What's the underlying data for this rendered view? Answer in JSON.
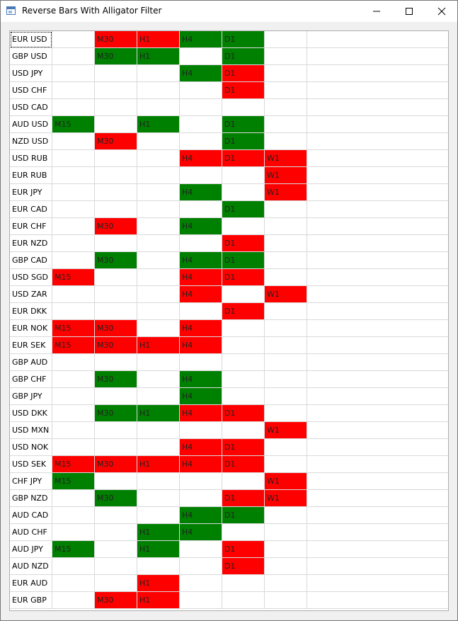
{
  "window": {
    "title": "Reverse Bars With Alligator Filter",
    "icon": "app-window-icon",
    "controls": [
      "minimize-icon",
      "maximize-icon",
      "close-icon"
    ]
  },
  "colors": {
    "bullish": "#008000",
    "bearish": "#ff0000"
  },
  "rows": [
    {
      "pair": "EUR USD",
      "cells": [
        {
          "t": "",
          "c": ""
        },
        {
          "t": "M30",
          "c": "red"
        },
        {
          "t": "H1",
          "c": "red"
        },
        {
          "t": "H4",
          "c": "green"
        },
        {
          "t": "D1",
          "c": "green"
        },
        {
          "t": "",
          "c": ""
        }
      ]
    },
    {
      "pair": "GBP USD",
      "cells": [
        {
          "t": "",
          "c": ""
        },
        {
          "t": "M30",
          "c": "green"
        },
        {
          "t": "H1",
          "c": "green"
        },
        {
          "t": "",
          "c": ""
        },
        {
          "t": "D1",
          "c": "green"
        },
        {
          "t": "",
          "c": ""
        }
      ]
    },
    {
      "pair": "USD JPY",
      "cells": [
        {
          "t": "",
          "c": ""
        },
        {
          "t": "",
          "c": ""
        },
        {
          "t": "",
          "c": ""
        },
        {
          "t": "H4",
          "c": "green"
        },
        {
          "t": "D1",
          "c": "red"
        },
        {
          "t": "",
          "c": ""
        }
      ]
    },
    {
      "pair": "USD CHF",
      "cells": [
        {
          "t": "",
          "c": ""
        },
        {
          "t": "",
          "c": ""
        },
        {
          "t": "",
          "c": ""
        },
        {
          "t": "",
          "c": ""
        },
        {
          "t": "D1",
          "c": "red"
        },
        {
          "t": "",
          "c": ""
        }
      ]
    },
    {
      "pair": "USD CAD",
      "cells": [
        {
          "t": "",
          "c": ""
        },
        {
          "t": "",
          "c": ""
        },
        {
          "t": "",
          "c": ""
        },
        {
          "t": "",
          "c": ""
        },
        {
          "t": "",
          "c": ""
        },
        {
          "t": "",
          "c": ""
        }
      ]
    },
    {
      "pair": "AUD USD",
      "cells": [
        {
          "t": "M15",
          "c": "green"
        },
        {
          "t": "",
          "c": ""
        },
        {
          "t": "H1",
          "c": "green"
        },
        {
          "t": "",
          "c": ""
        },
        {
          "t": "D1",
          "c": "green"
        },
        {
          "t": "",
          "c": ""
        }
      ]
    },
    {
      "pair": "NZD USD",
      "cells": [
        {
          "t": "",
          "c": ""
        },
        {
          "t": "M30",
          "c": "red"
        },
        {
          "t": "",
          "c": ""
        },
        {
          "t": "",
          "c": ""
        },
        {
          "t": "D1",
          "c": "green"
        },
        {
          "t": "",
          "c": ""
        }
      ]
    },
    {
      "pair": "USD RUB",
      "cells": [
        {
          "t": "",
          "c": ""
        },
        {
          "t": "",
          "c": ""
        },
        {
          "t": "",
          "c": ""
        },
        {
          "t": "H4",
          "c": "red"
        },
        {
          "t": "D1",
          "c": "red"
        },
        {
          "t": "W1",
          "c": "red"
        }
      ]
    },
    {
      "pair": "EUR RUB",
      "cells": [
        {
          "t": "",
          "c": ""
        },
        {
          "t": "",
          "c": ""
        },
        {
          "t": "",
          "c": ""
        },
        {
          "t": "",
          "c": ""
        },
        {
          "t": "",
          "c": ""
        },
        {
          "t": "W1",
          "c": "red"
        }
      ]
    },
    {
      "pair": "EUR JPY",
      "cells": [
        {
          "t": "",
          "c": ""
        },
        {
          "t": "",
          "c": ""
        },
        {
          "t": "",
          "c": ""
        },
        {
          "t": "H4",
          "c": "green"
        },
        {
          "t": "",
          "c": ""
        },
        {
          "t": "W1",
          "c": "red"
        }
      ]
    },
    {
      "pair": "EUR CAD",
      "cells": [
        {
          "t": "",
          "c": ""
        },
        {
          "t": "",
          "c": ""
        },
        {
          "t": "",
          "c": ""
        },
        {
          "t": "",
          "c": ""
        },
        {
          "t": "D1",
          "c": "green"
        },
        {
          "t": "",
          "c": ""
        }
      ]
    },
    {
      "pair": "EUR CHF",
      "cells": [
        {
          "t": "",
          "c": ""
        },
        {
          "t": "M30",
          "c": "red"
        },
        {
          "t": "",
          "c": ""
        },
        {
          "t": "H4",
          "c": "green"
        },
        {
          "t": "",
          "c": ""
        },
        {
          "t": "",
          "c": ""
        }
      ]
    },
    {
      "pair": "EUR NZD",
      "cells": [
        {
          "t": "",
          "c": ""
        },
        {
          "t": "",
          "c": ""
        },
        {
          "t": "",
          "c": ""
        },
        {
          "t": "",
          "c": ""
        },
        {
          "t": "D1",
          "c": "red"
        },
        {
          "t": "",
          "c": ""
        }
      ]
    },
    {
      "pair": "GBP CAD",
      "cells": [
        {
          "t": "",
          "c": ""
        },
        {
          "t": "M30",
          "c": "green"
        },
        {
          "t": "",
          "c": ""
        },
        {
          "t": "H4",
          "c": "green"
        },
        {
          "t": "D1",
          "c": "green"
        },
        {
          "t": "",
          "c": ""
        }
      ]
    },
    {
      "pair": "USD SGD",
      "cells": [
        {
          "t": "M15",
          "c": "red"
        },
        {
          "t": "",
          "c": ""
        },
        {
          "t": "",
          "c": ""
        },
        {
          "t": "H4",
          "c": "red"
        },
        {
          "t": "D1",
          "c": "red"
        },
        {
          "t": "",
          "c": ""
        }
      ]
    },
    {
      "pair": "USD ZAR",
      "cells": [
        {
          "t": "",
          "c": ""
        },
        {
          "t": "",
          "c": ""
        },
        {
          "t": "",
          "c": ""
        },
        {
          "t": "H4",
          "c": "red"
        },
        {
          "t": "",
          "c": ""
        },
        {
          "t": "W1",
          "c": "red"
        }
      ]
    },
    {
      "pair": "EUR DKK",
      "cells": [
        {
          "t": "",
          "c": ""
        },
        {
          "t": "",
          "c": ""
        },
        {
          "t": "",
          "c": ""
        },
        {
          "t": "",
          "c": ""
        },
        {
          "t": "D1",
          "c": "red"
        },
        {
          "t": "",
          "c": ""
        }
      ]
    },
    {
      "pair": "EUR NOK",
      "cells": [
        {
          "t": "M15",
          "c": "red"
        },
        {
          "t": "M30",
          "c": "red"
        },
        {
          "t": "",
          "c": ""
        },
        {
          "t": "H4",
          "c": "red"
        },
        {
          "t": "",
          "c": ""
        },
        {
          "t": "",
          "c": ""
        }
      ]
    },
    {
      "pair": "EUR SEK",
      "cells": [
        {
          "t": "M15",
          "c": "red"
        },
        {
          "t": "M30",
          "c": "red"
        },
        {
          "t": "H1",
          "c": "red"
        },
        {
          "t": "H4",
          "c": "red"
        },
        {
          "t": "",
          "c": ""
        },
        {
          "t": "",
          "c": ""
        }
      ]
    },
    {
      "pair": "GBP AUD",
      "cells": [
        {
          "t": "",
          "c": ""
        },
        {
          "t": "",
          "c": ""
        },
        {
          "t": "",
          "c": ""
        },
        {
          "t": "",
          "c": ""
        },
        {
          "t": "",
          "c": ""
        },
        {
          "t": "",
          "c": ""
        }
      ]
    },
    {
      "pair": "GBP CHF",
      "cells": [
        {
          "t": "",
          "c": ""
        },
        {
          "t": "M30",
          "c": "green"
        },
        {
          "t": "",
          "c": ""
        },
        {
          "t": "H4",
          "c": "green"
        },
        {
          "t": "",
          "c": ""
        },
        {
          "t": "",
          "c": ""
        }
      ]
    },
    {
      "pair": "GBP JPY",
      "cells": [
        {
          "t": "",
          "c": ""
        },
        {
          "t": "",
          "c": ""
        },
        {
          "t": "",
          "c": ""
        },
        {
          "t": "H4",
          "c": "green"
        },
        {
          "t": "",
          "c": ""
        },
        {
          "t": "",
          "c": ""
        }
      ]
    },
    {
      "pair": "USD DKK",
      "cells": [
        {
          "t": "",
          "c": ""
        },
        {
          "t": "M30",
          "c": "green"
        },
        {
          "t": "H1",
          "c": "green"
        },
        {
          "t": "H4",
          "c": "red"
        },
        {
          "t": "D1",
          "c": "red"
        },
        {
          "t": "",
          "c": ""
        }
      ]
    },
    {
      "pair": "USD MXN",
      "cells": [
        {
          "t": "",
          "c": ""
        },
        {
          "t": "",
          "c": ""
        },
        {
          "t": "",
          "c": ""
        },
        {
          "t": "",
          "c": ""
        },
        {
          "t": "",
          "c": ""
        },
        {
          "t": "W1",
          "c": "red"
        }
      ]
    },
    {
      "pair": "USD NOK",
      "cells": [
        {
          "t": "",
          "c": ""
        },
        {
          "t": "",
          "c": ""
        },
        {
          "t": "",
          "c": ""
        },
        {
          "t": "H4",
          "c": "red"
        },
        {
          "t": "D1",
          "c": "red"
        },
        {
          "t": "",
          "c": ""
        }
      ]
    },
    {
      "pair": "USD SEK",
      "cells": [
        {
          "t": "M15",
          "c": "red"
        },
        {
          "t": "M30",
          "c": "red"
        },
        {
          "t": "H1",
          "c": "red"
        },
        {
          "t": "H4",
          "c": "red"
        },
        {
          "t": "D1",
          "c": "red"
        },
        {
          "t": "",
          "c": ""
        }
      ]
    },
    {
      "pair": "CHF JPY",
      "cells": [
        {
          "t": "M15",
          "c": "green"
        },
        {
          "t": "",
          "c": ""
        },
        {
          "t": "",
          "c": ""
        },
        {
          "t": "",
          "c": ""
        },
        {
          "t": "",
          "c": ""
        },
        {
          "t": "W1",
          "c": "red"
        }
      ]
    },
    {
      "pair": "GBP NZD",
      "cells": [
        {
          "t": "",
          "c": ""
        },
        {
          "t": "M30",
          "c": "green"
        },
        {
          "t": "",
          "c": ""
        },
        {
          "t": "",
          "c": ""
        },
        {
          "t": "D1",
          "c": "red"
        },
        {
          "t": "W1",
          "c": "red"
        }
      ]
    },
    {
      "pair": "AUD CAD",
      "cells": [
        {
          "t": "",
          "c": ""
        },
        {
          "t": "",
          "c": ""
        },
        {
          "t": "",
          "c": ""
        },
        {
          "t": "H4",
          "c": "green"
        },
        {
          "t": "D1",
          "c": "green"
        },
        {
          "t": "",
          "c": ""
        }
      ]
    },
    {
      "pair": "AUD CHF",
      "cells": [
        {
          "t": "",
          "c": ""
        },
        {
          "t": "",
          "c": ""
        },
        {
          "t": "H1",
          "c": "green"
        },
        {
          "t": "H4",
          "c": "green"
        },
        {
          "t": "",
          "c": ""
        },
        {
          "t": "",
          "c": ""
        }
      ]
    },
    {
      "pair": "AUD JPY",
      "cells": [
        {
          "t": "M15",
          "c": "green"
        },
        {
          "t": "",
          "c": ""
        },
        {
          "t": "H1",
          "c": "green"
        },
        {
          "t": "",
          "c": ""
        },
        {
          "t": "D1",
          "c": "red"
        },
        {
          "t": "",
          "c": ""
        }
      ]
    },
    {
      "pair": "AUD NZD",
      "cells": [
        {
          "t": "",
          "c": ""
        },
        {
          "t": "",
          "c": ""
        },
        {
          "t": "",
          "c": ""
        },
        {
          "t": "",
          "c": ""
        },
        {
          "t": "D1",
          "c": "red"
        },
        {
          "t": "",
          "c": ""
        }
      ]
    },
    {
      "pair": "EUR AUD",
      "cells": [
        {
          "t": "",
          "c": ""
        },
        {
          "t": "",
          "c": ""
        },
        {
          "t": "H1",
          "c": "red"
        },
        {
          "t": "",
          "c": ""
        },
        {
          "t": "",
          "c": ""
        },
        {
          "t": "",
          "c": ""
        }
      ]
    },
    {
      "pair": "EUR GBP",
      "cells": [
        {
          "t": "",
          "c": ""
        },
        {
          "t": "M30",
          "c": "red"
        },
        {
          "t": "H1",
          "c": "red"
        },
        {
          "t": "",
          "c": ""
        },
        {
          "t": "",
          "c": ""
        },
        {
          "t": "",
          "c": ""
        }
      ]
    }
  ]
}
